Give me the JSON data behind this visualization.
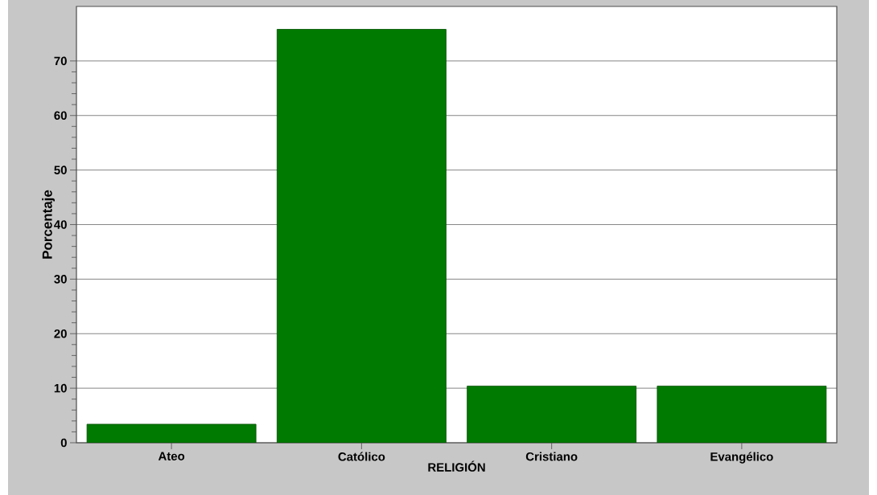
{
  "chart_data": {
    "type": "bar",
    "xlabel": "RELIGIÓN",
    "ylabel": "Porcentaje",
    "categories": [
      "Ateo",
      "Católico",
      "Cristiano",
      "Evangélico"
    ],
    "values": [
      3.4,
      75.8,
      10.4,
      10.4
    ],
    "color": "#007a00",
    "ylim": [
      0,
      80
    ],
    "yticks": [
      0,
      10,
      20,
      30,
      40,
      50,
      60,
      70
    ],
    "grid": "y"
  }
}
